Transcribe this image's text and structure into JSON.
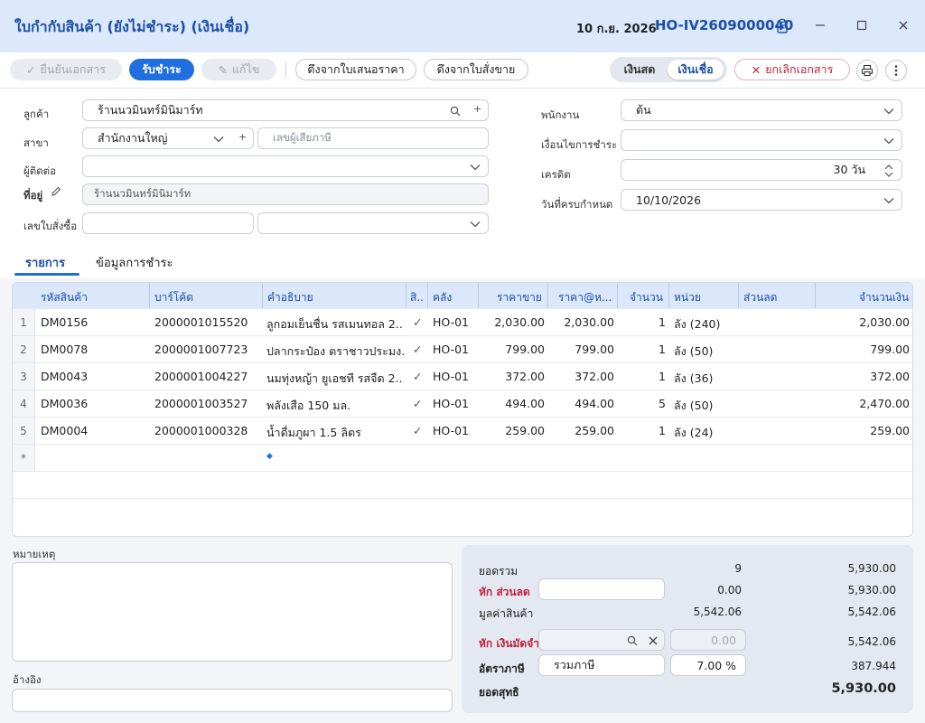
{
  "window": {
    "title": "ใบกำกับสินค้า (ยังไม่ชำระ) (เงินเชื่อ)",
    "date": "10 ก.ย. 2026",
    "doc_no": "HO-IV2609000040"
  },
  "toolbar": {
    "confirm_label": "ยืนยันเอกสาร",
    "receive_payment_label": "รับชำระ",
    "edit_label": "แก้ไข",
    "pull_quote_label": "ดึงจากใบเสนอราคา",
    "pull_order_label": "ดึงจากใบสั่งขาย",
    "cash_label": "เงินสด",
    "credit_label": "เงินเชื่อ",
    "cancel_doc_label": "ยกเลิกเอกสาร"
  },
  "form": {
    "customer_label": "ลูกค้า",
    "customer_value": "ร้านนวมินทร์มินิมาร์ท",
    "branch_label": "สาขา",
    "branch_value": "สำนักงานใหญ่",
    "tax_id_placeholder": "เลขผู้เสียภาษี",
    "contact_label": "ผู้ติดต่อ",
    "contact_value": "",
    "address_label": "ที่อยู่",
    "address_value": "ร้านนวมินทร์มินิมาร์ท",
    "po_label": "เลขใบสั่งซื้อ",
    "employee_label": "พนักงาน",
    "employee_value": "ต้น",
    "payment_terms_label": "เงื่อนไขการชำระ",
    "payment_terms_value": "",
    "credit_label": "เครดิต",
    "credit_value": "30 วัน",
    "due_date_label": "วันที่ครบกำหนด",
    "due_date_value": "10/10/2026"
  },
  "tabs": {
    "items_label": "รายการ",
    "payment_info_label": "ข้อมูลการชำระ"
  },
  "grid": {
    "headers": {
      "code": "รหัสสินค้า",
      "barcode": "บาร์โค้ด",
      "description": "คำอธิบาย",
      "vat": "สิ..",
      "warehouse": "คลัง",
      "price": "ราคาขาย",
      "unit_price": "ราคา@ห...",
      "qty": "จำนวน",
      "unit": "หน่วย",
      "discount": "ส่วนลด",
      "amount": "จำนวนเงิน"
    },
    "rows": [
      {
        "no": "1",
        "code": "DM0156",
        "barcode": "2000001015520",
        "desc": "ลูกอมเย็นชื่น รสเมนทอล 2...",
        "vat": "✓",
        "wh": "HO-01",
        "price": "2,030.00",
        "unit_price": "2,030.00",
        "qty": "1",
        "unit": "ลัง (240)",
        "discount": "",
        "amount": "2,030.00"
      },
      {
        "no": "2",
        "code": "DM0078",
        "barcode": "2000001007723",
        "desc": "ปลากระป๋อง ตราชาวประมง...",
        "vat": "✓",
        "wh": "HO-01",
        "price": "799.00",
        "unit_price": "799.00",
        "qty": "1",
        "unit": "ลัง (50)",
        "discount": "",
        "amount": "799.00"
      },
      {
        "no": "3",
        "code": "DM0043",
        "barcode": "2000001004227",
        "desc": "นมทุ่งหญ้า ยูเอชที รสจืด 2...",
        "vat": "✓",
        "wh": "HO-01",
        "price": "372.00",
        "unit_price": "372.00",
        "qty": "1",
        "unit": "ลัง (36)",
        "discount": "",
        "amount": "372.00"
      },
      {
        "no": "4",
        "code": "DM0036",
        "barcode": "2000001003527",
        "desc": "พลังเสือ 150 มล.",
        "vat": "✓",
        "wh": "HO-01",
        "price": "494.00",
        "unit_price": "494.00",
        "qty": "5",
        "unit": "ลัง (50)",
        "discount": "",
        "amount": "2,470.00"
      },
      {
        "no": "5",
        "code": "DM0004",
        "barcode": "2000001000328",
        "desc": "น้ำดื่มภูผา 1.5 ลิตร",
        "vat": "✓",
        "wh": "HO-01",
        "price": "259.00",
        "unit_price": "259.00",
        "qty": "1",
        "unit": "ลัง (24)",
        "discount": "",
        "amount": "259.00"
      }
    ],
    "new_row_marker": "*"
  },
  "notes": {
    "remark_label": "หมายเหตุ",
    "reference_label": "อ้างอิง"
  },
  "summary": {
    "total_label": "ยอดรวม",
    "total_qty": "9",
    "total_amount": "5,930.00",
    "discount_label": "หัก ส่วนลด",
    "discount_value": "0.00",
    "discount_amount": "5,930.00",
    "goods_value_label": "มูลค่าสินค้า",
    "goods_value_mid": "5,542.06",
    "goods_value_amount": "5,542.06",
    "deposit_label": "หัก เงินมัดจำ",
    "deposit_value": "0.00",
    "deposit_amount": "5,542.06",
    "tax_rate_label": "อัตราภาษี",
    "tax_mode": "รวมภาษี",
    "tax_rate": "7.00 %",
    "tax_amount": "387.944",
    "net_label": "ยอดสุทธิ",
    "net_amount": "5,930.00"
  }
}
